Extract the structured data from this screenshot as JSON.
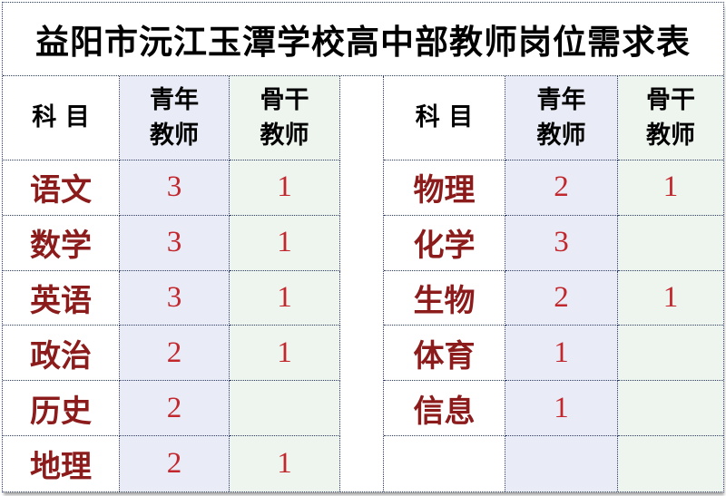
{
  "title": "益阳市沅江玉潭学校高中部教师岗位需求表",
  "headers": {
    "subject": "科目",
    "young": "青年\n教师",
    "backbone": "骨干\n教师"
  },
  "left_table": {
    "rows": [
      {
        "subject": "语文",
        "young": "3",
        "backbone": "1"
      },
      {
        "subject": "数学",
        "young": "3",
        "backbone": "1"
      },
      {
        "subject": "英语",
        "young": "3",
        "backbone": "1"
      },
      {
        "subject": "政治",
        "young": "2",
        "backbone": "1"
      },
      {
        "subject": "历史",
        "young": "2",
        "backbone": ""
      },
      {
        "subject": "地理",
        "young": "2",
        "backbone": "1"
      }
    ]
  },
  "right_table": {
    "rows": [
      {
        "subject": "物理",
        "young": "2",
        "backbone": "1"
      },
      {
        "subject": "化学",
        "young": "3",
        "backbone": ""
      },
      {
        "subject": "生物",
        "young": "2",
        "backbone": "1"
      },
      {
        "subject": "体育",
        "young": "1",
        "backbone": ""
      },
      {
        "subject": "信息",
        "young": "1",
        "backbone": ""
      },
      {
        "subject": "",
        "young": "",
        "backbone": ""
      }
    ]
  },
  "colors": {
    "page_bg": "#ffffff",
    "grid_border": "#2b3a66",
    "young_column_bg": "#e9ecf6",
    "backbone_column_bg": "#eef5ef",
    "subject_text": "#8c1c1c",
    "number_text": "#c1272d",
    "header_text": "#000000",
    "title_text": "#000000"
  }
}
